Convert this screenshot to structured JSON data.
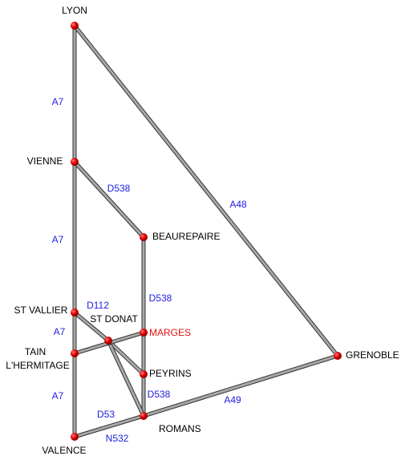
{
  "nodes": [
    {
      "lines": [
        "LYON"
      ]
    },
    {
      "lines": [
        "VIENNE"
      ]
    },
    {
      "lines": [
        "BEAUREPAIRE"
      ]
    },
    {
      "lines": [
        "GRENOBLE"
      ]
    },
    {
      "lines": [
        "ST VALLIER"
      ]
    },
    {
      "lines": [
        "ST DONAT"
      ]
    },
    {
      "lines": [
        "MARGES"
      ],
      "color": "#e01010"
    },
    {
      "lines": [
        "TAIN",
        "L'HERMITAGE"
      ]
    },
    {
      "lines": [
        "PEYRINS"
      ]
    },
    {
      "lines": [
        "ROMANS"
      ]
    },
    {
      "lines": [
        "VALENCE"
      ]
    }
  ],
  "roads": [
    "A7",
    "A7",
    "A7",
    "A7",
    "D538",
    "D538",
    "D538",
    "A48",
    "D112",
    "D53",
    "N532",
    "A49"
  ]
}
